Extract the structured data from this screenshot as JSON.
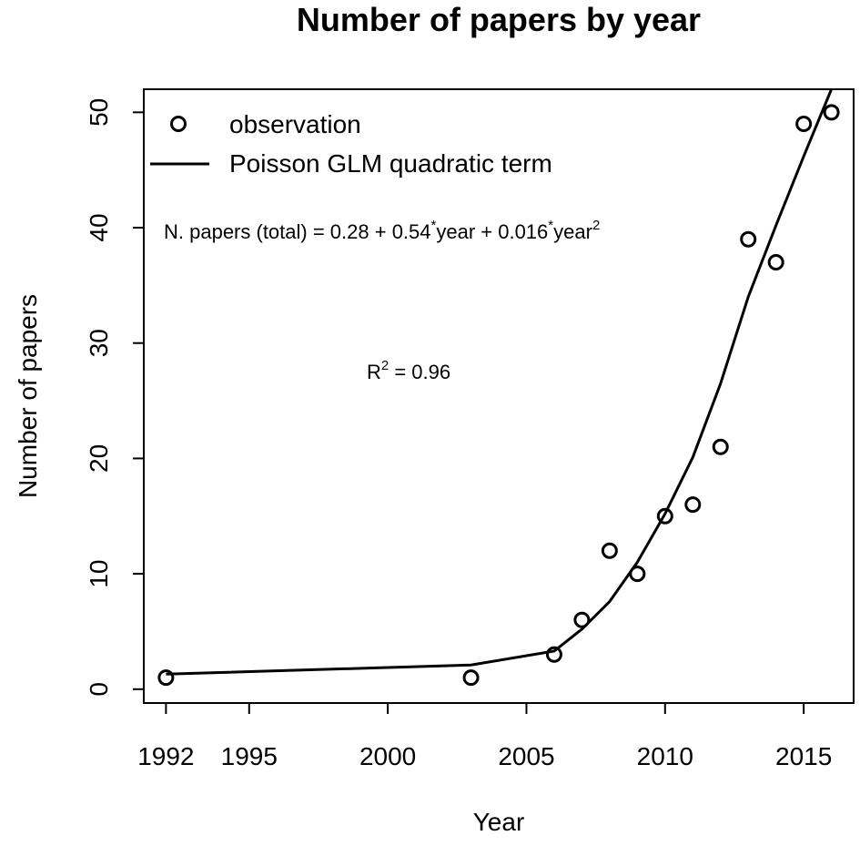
{
  "chart_data": {
    "type": "scatter",
    "title": "Number of papers by year",
    "xlabel": "Year",
    "ylabel": "Number of papers",
    "xlim": [
      1991.2,
      2016.8
    ],
    "ylim": [
      -1.2,
      52
    ],
    "x_ticks": [
      1992,
      1995,
      2000,
      2005,
      2010,
      2015
    ],
    "y_ticks": [
      0,
      10,
      20,
      30,
      40,
      50
    ],
    "grid": false,
    "legend_position": "top-left",
    "series": [
      {
        "name": "observation",
        "kind": "points",
        "marker": "open-circle",
        "x": [
          1992,
          2003,
          2006,
          2007,
          2008,
          2009,
          2010,
          2011,
          2012,
          2013,
          2014,
          2015,
          2016
        ],
        "y": [
          1,
          1,
          3,
          6,
          12,
          10,
          15,
          16,
          21,
          39,
          37,
          49,
          50
        ]
      },
      {
        "name": "Poisson GLM quadratic term",
        "kind": "line",
        "x": [
          1992,
          2003,
          2006,
          2007,
          2008,
          2009,
          2010,
          2011,
          2012,
          2013,
          2014,
          2015,
          2016
        ],
        "y": [
          1.3,
          2.1,
          3.3,
          5.2,
          7.6,
          11.0,
          15.2,
          20.1,
          26.5,
          34.0,
          40.2,
          46.2,
          52.0
        ]
      }
    ],
    "annotations": {
      "equation_prefix": "N. papers (total) = 0.28 + 0.54",
      "equation_star1": "*",
      "equation_mid": "year + 0.016",
      "equation_star2": "*",
      "equation_end": "year",
      "equation_exp": "2",
      "r2_base": "R",
      "r2_exp": "2",
      "r2_value": " = 0.96"
    }
  }
}
